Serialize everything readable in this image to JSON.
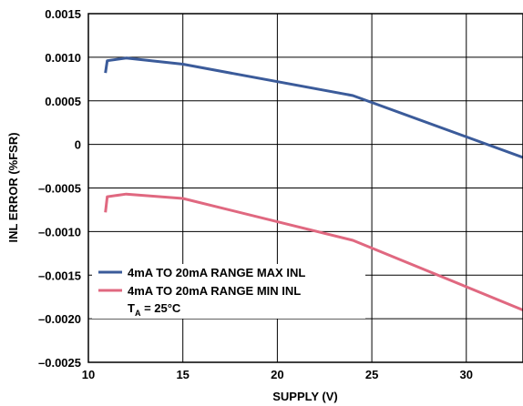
{
  "chart_data": {
    "type": "line",
    "xlabel": "SUPPLY (V)",
    "ylabel": "INL ERROR (%FSR)",
    "xlim": [
      10,
      33
    ],
    "ylim": [
      -0.0025,
      0.0015
    ],
    "grid": true,
    "x_ticks": [
      10,
      15,
      20,
      25,
      30
    ],
    "x_tick_labels": [
      "10",
      "15",
      "20",
      "25",
      "30"
    ],
    "y_ticks": [
      0.0015,
      0.001,
      0.0005,
      0,
      -0.0005,
      -0.001,
      -0.0015,
      -0.002,
      -0.0025
    ],
    "y_tick_labels": [
      "0.0015",
      "0.0010",
      "0.0005",
      "0",
      "–0.0005",
      "–0.0010",
      "–0.0015",
      "–0.0020",
      "–0.0025"
    ],
    "legend_placement": "bottom-left",
    "series": [
      {
        "name": "4mA TO 20mA RANGE MAX INL",
        "color": "#3b5b9a",
        "x": [
          10.9,
          11.0,
          12.0,
          15.0,
          24.0,
          33.0
        ],
        "y": [
          0.00082,
          0.00096,
          0.00099,
          0.00092,
          0.00056,
          -0.00015
        ]
      },
      {
        "name": "4mA TO 20mA RANGE MIN INL",
        "color": "#e06880",
        "x": [
          10.9,
          11.0,
          12.0,
          15.0,
          24.0,
          33.0
        ],
        "y": [
          -0.00078,
          -0.0006,
          -0.00057,
          -0.00062,
          -0.0011,
          -0.0019
        ]
      }
    ],
    "annotation_main": "T",
    "annotation_sub": "A",
    "annotation_rest": " = 25°C"
  }
}
